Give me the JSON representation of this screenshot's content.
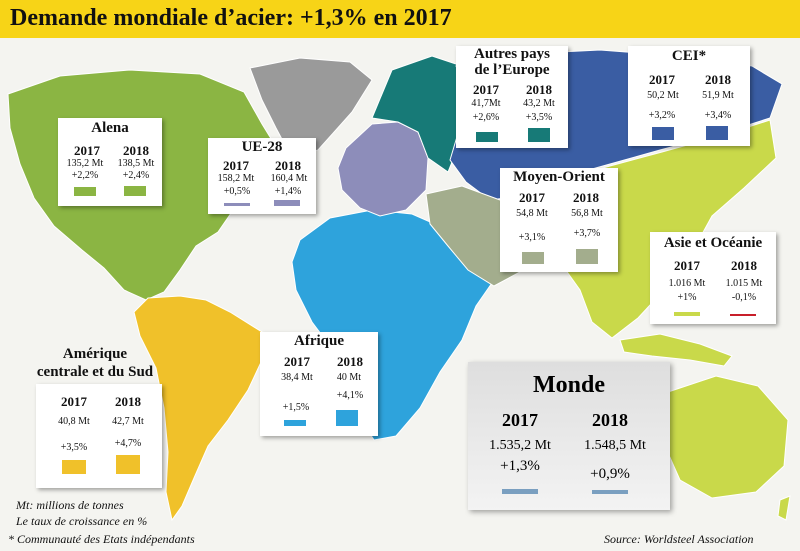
{
  "title": "Demande mondiale d’acier: +1,3% en 2017",
  "colors": {
    "title_bar": "#f7d417",
    "ocean": "#f4f4f0",
    "alena": "#8bb543",
    "ue28": "#8d8dba",
    "europe_other": "#177a77",
    "cei": "#3a5da3",
    "moyen_orient": "#a3ad8d",
    "asie_oceanie": "#c9d94a",
    "afrique": "#2ea3dc",
    "amerique_sud": "#f0c12a",
    "greenland": "#9a9a9a",
    "negative": "#c81f2a"
  },
  "year_labels": {
    "y2017": "2017",
    "y2018": "2018"
  },
  "regions": {
    "alena": {
      "name": "Alena",
      "v2017": "135,2 Mt",
      "v2018": "138,5 Mt",
      "g2017": "+2,2%",
      "g2018": "+2,4%",
      "growth_2017": 2.2,
      "growth_2018": 2.4,
      "color": "#8bb543"
    },
    "ue28": {
      "name": "UE-28",
      "v2017": "158,2 Mt",
      "v2018": "160,4 Mt",
      "g2017": "+0,5%",
      "g2018": "+1,4%",
      "growth_2017": 0.5,
      "growth_2018": 1.4,
      "color": "#8d8dba"
    },
    "autres_europe": {
      "name_line1": "Autres pays",
      "name_line2": "de l’Europe",
      "v2017": "41,7Mt",
      "v2018": "43,2 Mt",
      "g2017": "+2,6%",
      "g2018": "+3,5%",
      "growth_2017": 2.6,
      "growth_2018": 3.5,
      "color": "#177a77"
    },
    "cei": {
      "name": "CEI*",
      "v2017": "50,2 Mt",
      "v2018": "51,9 Mt",
      "g2017": "+3,2%",
      "g2018": "+3,4%",
      "growth_2017": 3.2,
      "growth_2018": 3.4,
      "color": "#3a5da3"
    },
    "moyen_orient": {
      "name": "Moyen-Orient",
      "v2017": "54,8 Mt",
      "v2018": "56,8 Mt",
      "g2017": "+3,1%",
      "g2018": "+3,7%",
      "growth_2017": 3.1,
      "growth_2018": 3.7,
      "color": "#a3ad8d"
    },
    "asie_oceanie": {
      "name": "Asie et Océanie",
      "v2017": "1.016 Mt",
      "v2018": "1.015 Mt",
      "g2017": "+1%",
      "g2018": "-0,1%",
      "growth_2017": 1.0,
      "growth_2018": -0.1,
      "color": "#c9d94a",
      "negative_color": "#c81f2a"
    },
    "afrique": {
      "name": "Afrique",
      "v2017": "38,4 Mt",
      "v2018": "40 Mt",
      "g2017": "+1,5%",
      "g2018": "+4,1%",
      "growth_2017": 1.5,
      "growth_2018": 4.1,
      "color": "#2ea3dc"
    },
    "amerique_sud": {
      "name_line1": "Amérique",
      "name_line2": "centrale et du Sud",
      "v2017": "40,8 Mt",
      "v2018": "42,7 Mt",
      "g2017": "+3,5%",
      "g2018": "+4,7%",
      "growth_2017": 3.5,
      "growth_2018": 4.7,
      "color": "#f0c12a"
    },
    "monde": {
      "name": "Monde",
      "v2017": "1.535,2 Mt",
      "v2018": "1.548,5 Mt",
      "g2017": "+1,3%",
      "g2018": "+0,9%",
      "growth_2017": 1.3,
      "growth_2018": 0.9,
      "color": "#7a9fc0"
    }
  },
  "footnotes": {
    "units": "Mt: millions de tonnes",
    "growth": "Le taux de croissance en %",
    "cei": "* Communauté des Etats indépendants",
    "source": "Source: Worldsteel Association"
  }
}
